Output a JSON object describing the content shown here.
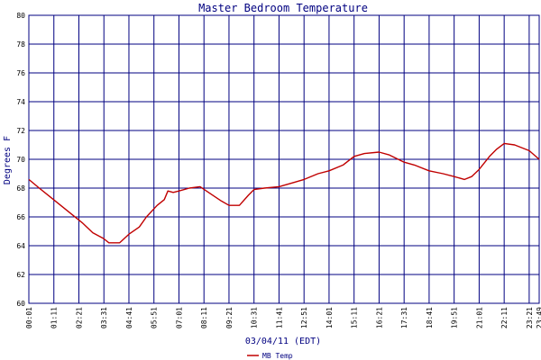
{
  "chart_data": {
    "type": "line",
    "title": "Master Bedroom Temperature",
    "xlabel": "03/04/11 (EDT)",
    "ylabel": "Degrees F",
    "ylim": [
      60,
      80
    ],
    "yticks": [
      60,
      62,
      64,
      66,
      68,
      70,
      72,
      74,
      76,
      78,
      80
    ],
    "xlim": [
      "00:01",
      "23:49"
    ],
    "xticks": [
      "00:01",
      "01:11",
      "02:21",
      "03:31",
      "04:41",
      "05:51",
      "07:01",
      "08:11",
      "09:21",
      "10:31",
      "11:41",
      "12:51",
      "14:01",
      "15:11",
      "16:21",
      "17:31",
      "18:41",
      "19:51",
      "21:01",
      "22:11",
      "23:21",
      "23:49"
    ],
    "grid": true,
    "legend_position": "bottom-left",
    "colors": {
      "series": "#c00000",
      "grid": "#000080",
      "text": "#000080"
    },
    "series": [
      {
        "name": "MB Temp",
        "points": [
          [
            "00:01",
            68.6
          ],
          [
            "00:30",
            68.0
          ],
          [
            "01:00",
            67.4
          ],
          [
            "01:30",
            66.8
          ],
          [
            "02:00",
            66.2
          ],
          [
            "02:30",
            65.6
          ],
          [
            "03:00",
            64.9
          ],
          [
            "03:30",
            64.5
          ],
          [
            "03:45",
            64.2
          ],
          [
            "04:15",
            64.2
          ],
          [
            "04:41",
            64.8
          ],
          [
            "05:10",
            65.3
          ],
          [
            "05:30",
            66.0
          ],
          [
            "06:00",
            66.8
          ],
          [
            "06:20",
            67.2
          ],
          [
            "06:30",
            67.8
          ],
          [
            "06:45",
            67.7
          ],
          [
            "07:01",
            67.8
          ],
          [
            "07:30",
            68.0
          ],
          [
            "08:00",
            68.1
          ],
          [
            "08:30",
            67.6
          ],
          [
            "09:00",
            67.1
          ],
          [
            "09:21",
            66.8
          ],
          [
            "09:50",
            66.8
          ],
          [
            "10:15",
            67.5
          ],
          [
            "10:31",
            67.9
          ],
          [
            "11:00",
            68.0
          ],
          [
            "11:41",
            68.1
          ],
          [
            "12:10",
            68.3
          ],
          [
            "12:51",
            68.6
          ],
          [
            "13:30",
            69.0
          ],
          [
            "14:01",
            69.2
          ],
          [
            "14:40",
            69.6
          ],
          [
            "15:11",
            70.2
          ],
          [
            "15:40",
            70.4
          ],
          [
            "16:21",
            70.5
          ],
          [
            "16:50",
            70.3
          ],
          [
            "17:31",
            69.8
          ],
          [
            "18:00",
            69.6
          ],
          [
            "18:41",
            69.2
          ],
          [
            "19:20",
            69.0
          ],
          [
            "19:51",
            68.8
          ],
          [
            "20:20",
            68.6
          ],
          [
            "20:40",
            68.8
          ],
          [
            "21:01",
            69.3
          ],
          [
            "21:30",
            70.2
          ],
          [
            "21:50",
            70.7
          ],
          [
            "22:11",
            71.1
          ],
          [
            "22:40",
            71.0
          ],
          [
            "23:21",
            70.6
          ],
          [
            "23:49",
            70.0
          ]
        ]
      }
    ]
  }
}
